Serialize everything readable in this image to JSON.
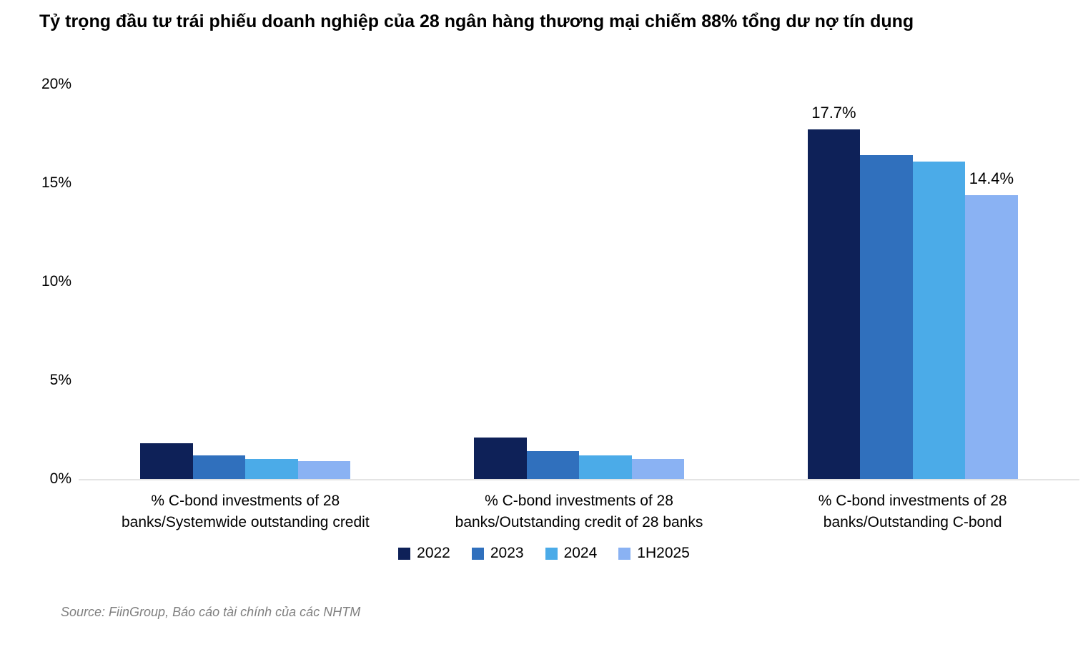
{
  "chart_data": {
    "type": "bar",
    "title": "Tỷ trọng đầu tư trái phiếu doanh nghiệp của 28 ngân hàng thương mại chiếm 88% tổng dư nợ tín dụng",
    "categories": [
      "% C-bond investments of 28\nbanks/Systemwide outstanding credit",
      "% C-bond investments of 28\nbanks/Outstanding credit of 28 banks",
      "% C-bond investments of 28\nbanks/Outstanding C-bond"
    ],
    "series": [
      {
        "name": "2022",
        "color": "#0e2158",
        "values": [
          1.8,
          2.1,
          17.7
        ],
        "data_labels": [
          "",
          "",
          "17.7%"
        ]
      },
      {
        "name": "2023",
        "color": "#3070bd",
        "values": [
          1.2,
          1.4,
          16.4
        ],
        "data_labels": [
          "",
          "",
          ""
        ]
      },
      {
        "name": "2024",
        "color": "#4babe8",
        "values": [
          1.0,
          1.2,
          16.1
        ],
        "data_labels": [
          "",
          "",
          ""
        ]
      },
      {
        "name": "1H2025",
        "color": "#8ab2f3",
        "values": [
          0.9,
          1.0,
          14.4
        ],
        "data_labels": [
          "",
          "",
          "14.4%"
        ]
      }
    ],
    "y_ticks": [
      "20%",
      "15%",
      "10%",
      "5%",
      "0%"
    ],
    "ylim": [
      0,
      20
    ],
    "xlabel": "",
    "ylabel": "",
    "grid": false,
    "legend_position": "bottom",
    "axis_line_color": "#e4e4e4"
  },
  "source": {
    "text": "Source: FiinGroup, Báo cáo tài chính của các NHTM"
  }
}
